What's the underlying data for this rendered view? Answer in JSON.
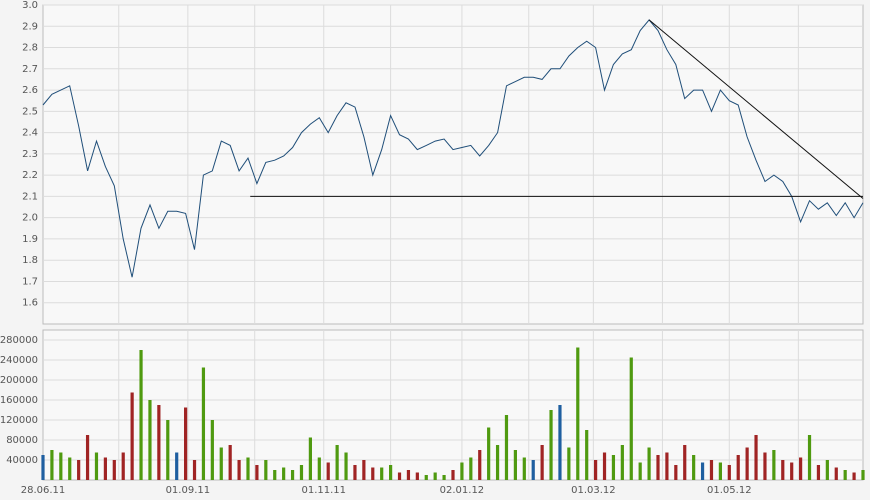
{
  "chart_data": [
    {
      "type": "line",
      "x": [
        0,
        4,
        8,
        12,
        16,
        20,
        24,
        28,
        32,
        36,
        40,
        44,
        48,
        52,
        56,
        60,
        64,
        68,
        72,
        76,
        80,
        84,
        88,
        92,
        96,
        100,
        104,
        108,
        112,
        116,
        120,
        124,
        128,
        132,
        136,
        140,
        144,
        148,
        152,
        156,
        160,
        164,
        168,
        172,
        176,
        180,
        184,
        188,
        192,
        196,
        200,
        204,
        208,
        212,
        216,
        220,
        224,
        228,
        232,
        236,
        240,
        244,
        248,
        252,
        256,
        260,
        264,
        268,
        272,
        276,
        280,
        284,
        288,
        292,
        296,
        300,
        304,
        308,
        312,
        316,
        320,
        324,
        328,
        332,
        336,
        340,
        344,
        348,
        352,
        356,
        360,
        364,
        368
      ],
      "series": [
        {
          "color": "#1f4e79",
          "values": [
            2.53,
            2.58,
            2.6,
            2.62,
            2.43,
            2.22,
            2.36,
            2.24,
            2.15,
            1.9,
            1.72,
            1.95,
            2.06,
            1.95,
            2.03,
            2.03,
            2.02,
            1.85,
            2.2,
            2.22,
            2.36,
            2.34,
            2.22,
            2.28,
            2.16,
            2.26,
            2.27,
            2.29,
            2.33,
            2.4,
            2.44,
            2.47,
            2.4,
            2.48,
            2.54,
            2.52,
            2.38,
            2.2,
            2.32,
            2.48,
            2.39,
            2.37,
            2.32,
            2.34,
            2.36,
            2.37,
            2.32,
            2.33,
            2.34,
            2.29,
            2.34,
            2.4,
            2.62,
            2.64,
            2.66,
            2.66,
            2.65,
            2.7,
            2.7,
            2.76,
            2.8,
            2.83,
            2.8,
            2.6,
            2.72,
            2.77,
            2.79,
            2.88,
            2.93,
            2.88,
            2.79,
            2.72,
            2.56,
            2.6,
            2.6,
            2.5,
            2.6,
            2.55,
            2.53,
            2.38,
            2.27,
            2.17,
            2.2,
            2.17,
            2.1,
            1.98,
            2.08,
            2.04,
            2.07,
            2.01,
            2.07,
            2.0,
            2.07
          ]
        }
      ],
      "xlim": [
        0,
        368
      ],
      "xticks": [
        {
          "value": 0,
          "label": "28.06.11"
        },
        {
          "value": 65,
          "label": "01.09.11"
        },
        {
          "value": 126,
          "label": "01.11.11"
        },
        {
          "value": 188,
          "label": "02.01.12"
        },
        {
          "value": 247,
          "label": "01.03.12"
        },
        {
          "value": 308,
          "label": "01.05.12"
        }
      ],
      "xgrid": [
        34,
        65,
        95,
        126,
        156,
        188,
        218,
        247,
        278,
        308,
        339
      ],
      "ylim": [
        1.5,
        3.0
      ],
      "yticks": [
        1.6,
        1.7,
        1.8,
        1.9,
        {
          "value": 2.0,
          "label": "2.0"
        },
        2.1,
        2.2,
        2.3,
        2.4,
        2.5,
        2.6,
        2.7,
        2.8,
        2.9,
        {
          "value": 3.0,
          "label": "3.0"
        }
      ],
      "trendlines": [
        {
          "x": [
            93,
            368
          ],
          "y": [
            2.1,
            2.1
          ]
        },
        {
          "x": [
            272,
            368
          ],
          "y": [
            2.93,
            2.09
          ]
        }
      ],
      "grid": true
    },
    {
      "type": "bar",
      "values": [
        50000,
        60000,
        55000,
        45000,
        40000,
        90000,
        55000,
        45000,
        40000,
        55000,
        175000,
        260000,
        160000,
        150000,
        120000,
        55000,
        145000,
        40000,
        225000,
        120000,
        65000,
        70000,
        40000,
        45000,
        30000,
        40000,
        20000,
        25000,
        20000,
        30000,
        85000,
        45000,
        35000,
        70000,
        55000,
        30000,
        40000,
        25000,
        25000,
        30000,
        15000,
        20000,
        15000,
        10000,
        15000,
        10000,
        20000,
        35000,
        45000,
        60000,
        105000,
        70000,
        130000,
        60000,
        45000,
        40000,
        70000,
        140000,
        150000,
        65000,
        265000,
        100000,
        40000,
        55000,
        50000,
        70000,
        245000,
        35000,
        65000,
        50000,
        55000,
        30000,
        70000,
        50000,
        35000,
        40000,
        35000,
        30000,
        50000,
        65000,
        90000,
        55000,
        60000,
        40000,
        35000,
        45000,
        90000,
        30000,
        40000,
        25000,
        20000,
        15000,
        20000
      ],
      "up_color": "#4f9a10",
      "down_color": "#a02424",
      "flat_color": "#1f5fa0",
      "ylim": [
        0,
        300000
      ],
      "yticks": [
        40000,
        80000,
        120000,
        160000,
        200000,
        240000,
        280000
      ],
      "grid": true
    }
  ]
}
